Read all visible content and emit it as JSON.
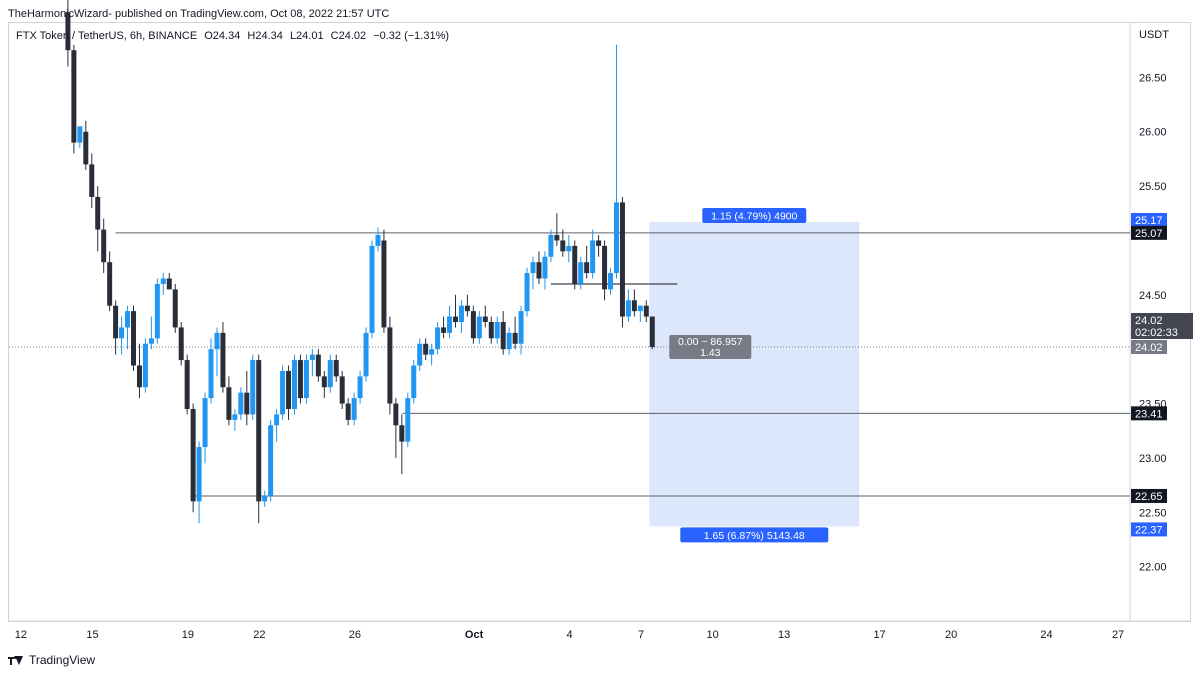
{
  "header": {
    "author": "TheHarmonicWizard",
    "published": "- published on TradingView.com, Oct 08, 2022 21:57 UTC"
  },
  "symbol": {
    "name": "FTX Token / TetherUS, 6h, BINANCE",
    "open": "O24.34",
    "high": "H24.34",
    "low": "L24.01",
    "close": "C24.02",
    "change": "−0.32 (−1.31%)"
  },
  "footer": {
    "brand": "TradingView"
  },
  "colors": {
    "up": "#2196f3",
    "down": "#2a2e39",
    "zone": "#dbe6fb",
    "label_blue": "#2962ff",
    "level_dark": "#131722",
    "measure_grey": "#787b86"
  },
  "chart_data": {
    "type": "candlestick",
    "yaxis": {
      "unit": "USDT",
      "ticks": [
        26.5,
        26.0,
        25.5,
        24.5,
        23.5,
        23.0,
        22.5,
        22.0
      ],
      "tick_labels": [
        "26.50",
        "26.00",
        "25.50",
        "24.50",
        "23.50",
        "23.00",
        "22.50",
        "22.00"
      ],
      "range": [
        21.5,
        27.0
      ]
    },
    "xaxis": {
      "day_range": [
        11.5,
        27.5
      ],
      "tick_days": [
        12,
        15,
        19,
        22,
        26,
        31,
        35,
        38,
        41,
        44,
        48,
        51,
        55,
        58
      ],
      "tick_labels": [
        "12",
        "15",
        "19",
        "22",
        "26",
        "Oct",
        "4",
        "7",
        "10",
        "13",
        "17",
        "20",
        "24",
        "27"
      ]
    },
    "candles": [
      [
        13.97,
        27.1,
        27.3,
        26.6,
        26.75
      ],
      [
        14.22,
        26.75,
        26.8,
        25.8,
        25.9
      ],
      [
        14.47,
        25.9,
        26.0,
        25.85,
        26.05
      ],
      [
        14.72,
        26.0,
        26.1,
        25.65,
        25.7
      ],
      [
        14.97,
        25.7,
        25.8,
        25.3,
        25.4
      ],
      [
        15.22,
        25.4,
        25.5,
        24.9,
        25.1
      ],
      [
        15.47,
        25.1,
        25.2,
        24.7,
        24.8
      ],
      [
        15.72,
        24.8,
        24.9,
        24.35,
        24.4
      ],
      [
        15.97,
        24.4,
        24.45,
        23.95,
        24.1
      ],
      [
        16.22,
        24.1,
        24.3,
        23.95,
        24.2
      ],
      [
        16.47,
        24.2,
        24.4,
        24.0,
        24.35
      ],
      [
        16.72,
        24.35,
        24.4,
        23.8,
        23.85
      ],
      [
        16.97,
        23.85,
        24.05,
        23.55,
        23.65
      ],
      [
        17.22,
        23.65,
        24.1,
        23.6,
        24.05
      ],
      [
        17.47,
        24.05,
        24.3,
        24.0,
        24.1
      ],
      [
        17.72,
        24.1,
        24.65,
        24.05,
        24.6
      ],
      [
        17.97,
        24.6,
        24.7,
        24.5,
        24.65
      ],
      [
        18.22,
        24.65,
        24.7,
        24.55,
        24.55
      ],
      [
        18.47,
        24.55,
        24.6,
        24.15,
        24.2
      ],
      [
        18.72,
        24.2,
        24.25,
        23.85,
        23.9
      ],
      [
        18.97,
        23.9,
        23.95,
        23.4,
        23.45
      ],
      [
        19.22,
        23.45,
        23.5,
        22.5,
        22.6
      ],
      [
        19.47,
        22.6,
        23.15,
        22.4,
        23.1
      ],
      [
        19.72,
        23.1,
        23.6,
        22.95,
        23.55
      ],
      [
        19.97,
        23.55,
        24.1,
        23.5,
        24.0
      ],
      [
        20.22,
        24.0,
        24.2,
        23.75,
        24.15
      ],
      [
        20.47,
        24.15,
        24.25,
        23.6,
        23.65
      ],
      [
        20.72,
        23.65,
        23.75,
        23.3,
        23.35
      ],
      [
        20.97,
        23.35,
        23.45,
        23.25,
        23.4
      ],
      [
        21.22,
        23.4,
        23.65,
        23.35,
        23.6
      ],
      [
        21.47,
        23.6,
        23.8,
        23.3,
        23.4
      ],
      [
        21.72,
        23.4,
        23.95,
        23.35,
        23.9
      ],
      [
        21.97,
        23.9,
        23.95,
        22.4,
        22.6
      ],
      [
        22.22,
        22.6,
        22.7,
        22.55,
        22.65
      ],
      [
        22.47,
        22.65,
        23.35,
        22.6,
        23.3
      ],
      [
        22.72,
        23.3,
        23.45,
        23.15,
        23.4
      ],
      [
        22.97,
        23.4,
        23.85,
        23.35,
        23.8
      ],
      [
        23.22,
        23.8,
        23.85,
        23.35,
        23.45
      ],
      [
        23.47,
        23.45,
        23.95,
        23.4,
        23.9
      ],
      [
        23.72,
        23.9,
        23.95,
        23.5,
        23.55
      ],
      [
        23.97,
        23.55,
        23.95,
        23.5,
        23.9
      ],
      [
        24.22,
        23.9,
        24.0,
        23.75,
        23.95
      ],
      [
        24.47,
        23.95,
        24.0,
        23.7,
        23.75
      ],
      [
        24.72,
        23.75,
        23.8,
        23.55,
        23.65
      ],
      [
        24.97,
        23.65,
        23.95,
        23.6,
        23.9
      ],
      [
        25.22,
        23.9,
        23.95,
        23.7,
        23.75
      ],
      [
        25.47,
        23.75,
        23.8,
        23.45,
        23.5
      ],
      [
        25.72,
        23.5,
        23.55,
        23.3,
        23.35
      ],
      [
        25.97,
        23.35,
        23.6,
        23.3,
        23.55
      ],
      [
        26.22,
        23.55,
        23.8,
        23.5,
        23.75
      ],
      [
        26.47,
        23.75,
        24.2,
        23.7,
        24.15
      ],
      [
        26.72,
        24.15,
        25.0,
        24.1,
        24.95
      ],
      [
        26.97,
        24.95,
        25.12,
        24.9,
        25.05
      ],
      [
        27.22,
        25.0,
        25.1,
        24.15,
        24.2
      ],
      [
        27.47,
        24.2,
        24.3,
        23.4,
        23.5
      ],
      [
        27.72,
        23.5,
        23.55,
        23.0,
        23.3
      ],
      [
        27.97,
        23.3,
        23.4,
        22.85,
        23.15
      ],
      [
        28.22,
        23.15,
        23.6,
        23.1,
        23.55
      ],
      [
        28.47,
        23.55,
        23.9,
        23.5,
        23.85
      ],
      [
        28.72,
        23.85,
        24.1,
        23.8,
        24.05
      ],
      [
        28.97,
        24.05,
        24.1,
        23.9,
        23.95
      ],
      [
        29.22,
        23.95,
        24.05,
        23.85,
        24.0
      ],
      [
        29.47,
        24.0,
        24.25,
        23.95,
        24.2
      ],
      [
        29.72,
        24.2,
        24.3,
        24.1,
        24.15
      ],
      [
        29.97,
        24.15,
        24.4,
        24.1,
        24.3
      ],
      [
        30.22,
        24.3,
        24.5,
        24.2,
        24.25
      ],
      [
        30.47,
        24.25,
        24.45,
        24.15,
        24.4
      ],
      [
        30.72,
        24.4,
        24.5,
        24.3,
        24.35
      ],
      [
        30.97,
        24.35,
        24.4,
        24.05,
        24.1
      ],
      [
        31.22,
        24.1,
        24.35,
        24.05,
        24.3
      ],
      [
        31.47,
        24.3,
        24.4,
        24.2,
        24.25
      ],
      [
        31.72,
        24.25,
        24.3,
        24.05,
        24.1
      ],
      [
        31.97,
        24.1,
        24.3,
        24.05,
        24.25
      ],
      [
        32.22,
        24.25,
        24.35,
        23.95,
        24.0
      ],
      [
        32.47,
        24.0,
        24.2,
        23.95,
        24.15
      ],
      [
        32.72,
        24.15,
        24.3,
        24.0,
        24.05
      ],
      [
        32.97,
        24.05,
        24.4,
        23.95,
        24.35
      ],
      [
        33.22,
        24.35,
        24.75,
        24.3,
        24.7
      ],
      [
        33.47,
        24.7,
        24.85,
        24.55,
        24.8
      ],
      [
        33.72,
        24.8,
        24.9,
        24.6,
        24.65
      ],
      [
        33.97,
        24.65,
        24.9,
        24.55,
        24.85
      ],
      [
        34.22,
        24.85,
        25.1,
        24.8,
        25.05
      ],
      [
        34.47,
        25.05,
        25.25,
        24.95,
        25.0
      ],
      [
        34.72,
        25.0,
        25.1,
        24.85,
        24.9
      ],
      [
        34.97,
        24.9,
        25.05,
        24.8,
        24.95
      ],
      [
        35.22,
        24.95,
        25.0,
        24.55,
        24.6
      ],
      [
        35.47,
        24.6,
        24.85,
        24.55,
        24.8
      ],
      [
        35.72,
        24.8,
        24.95,
        24.65,
        24.7
      ],
      [
        35.97,
        24.7,
        25.1,
        24.65,
        25.0
      ],
      [
        36.22,
        25.0,
        25.05,
        24.85,
        24.95
      ],
      [
        36.47,
        24.95,
        25.0,
        24.45,
        24.55
      ],
      [
        36.72,
        24.55,
        24.75,
        24.5,
        24.7
      ],
      [
        36.97,
        24.7,
        26.8,
        24.65,
        25.35
      ],
      [
        37.22,
        25.35,
        25.4,
        24.2,
        24.3
      ],
      [
        37.47,
        24.3,
        24.55,
        24.25,
        24.45
      ],
      [
        37.72,
        24.45,
        24.55,
        24.3,
        24.35
      ],
      [
        37.97,
        24.35,
        24.4,
        24.25,
        24.4
      ],
      [
        38.22,
        24.4,
        24.45,
        24.25,
        24.3
      ],
      [
        38.47,
        24.3,
        24.3,
        24.0,
        24.02
      ]
    ]
  },
  "levels": [
    {
      "price": 25.07,
      "label": "25.07",
      "from_day": 15.97,
      "style": "dark"
    },
    {
      "price": 23.41,
      "label": "23.41",
      "from_day": 28.0,
      "style": "dark"
    },
    {
      "price": 22.65,
      "label": "22.65",
      "from_day": 19.1,
      "style": "dark"
    }
  ],
  "current_price": {
    "price": 24.02,
    "label": "24.02",
    "countdown": "02:02:33",
    "last_label": "24.02"
  },
  "zone_top": {
    "price": 25.17,
    "label": "25.17"
  },
  "zone_bottom": {
    "price": 22.37,
    "label": "22.37"
  },
  "mid_line": {
    "price": 24.6,
    "from_day": 34.22,
    "to_day": 39.52
  },
  "position": {
    "from_day": 38.22,
    "to_day": 47.15,
    "entry": 24.02,
    "target": 25.17,
    "stop": 22.37,
    "target_label": "1.15 (4.79%) 4900",
    "stop_label": "1.65 (6.87%) 5143.48",
    "entry_label_1": "0.00 ~ 86.957",
    "entry_label_2": "1.43"
  }
}
